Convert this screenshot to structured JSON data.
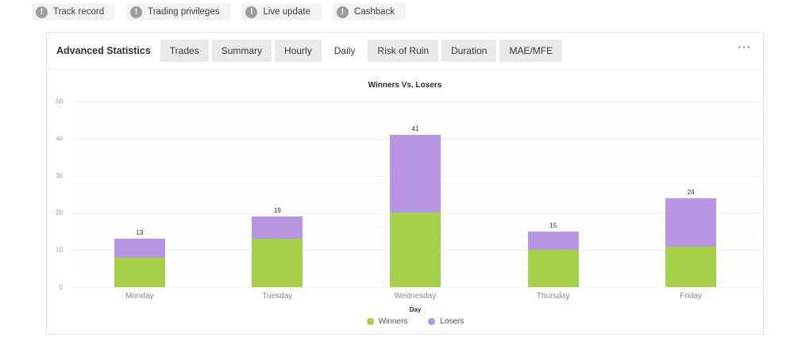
{
  "icons": {
    "alert": "!",
    "ellipsis": "···"
  },
  "badges": [
    {
      "label": "Track record"
    },
    {
      "label": "Trading privileges"
    },
    {
      "label": "Live update"
    },
    {
      "label": "Cashback"
    }
  ],
  "panel": {
    "section_label": "Advanced Statistics",
    "tabs": [
      {
        "label": "Trades",
        "active": false
      },
      {
        "label": "Summary",
        "active": false
      },
      {
        "label": "Hourly",
        "active": false
      },
      {
        "label": "Daily",
        "active": true
      },
      {
        "label": "Risk of Ruin",
        "active": false
      },
      {
        "label": "Duration",
        "active": false
      },
      {
        "label": "MAE/MFE",
        "active": false
      }
    ]
  },
  "chart_data": {
    "type": "bar",
    "stacked": true,
    "title": "Winners Vs. Losers",
    "xlabel": "Day",
    "ylabel": "",
    "categories": [
      "Monday",
      "Tuesday",
      "Wednesday",
      "Thursday",
      "Friday"
    ],
    "series": [
      {
        "name": "Winners",
        "color": "#a6cf4a",
        "values": [
          8,
          13,
          20,
          10,
          11
        ]
      },
      {
        "name": "Losers",
        "color": "#b795e1",
        "values": [
          5,
          6,
          21,
          5,
          13
        ]
      }
    ],
    "totals": [
      13,
      19,
      41,
      15,
      24
    ],
    "ylim": [
      0,
      50
    ],
    "yticks": [
      0,
      10,
      20,
      30,
      40,
      50
    ],
    "minor_tick_step": 2,
    "grid": true,
    "legend_position": "bottom"
  }
}
